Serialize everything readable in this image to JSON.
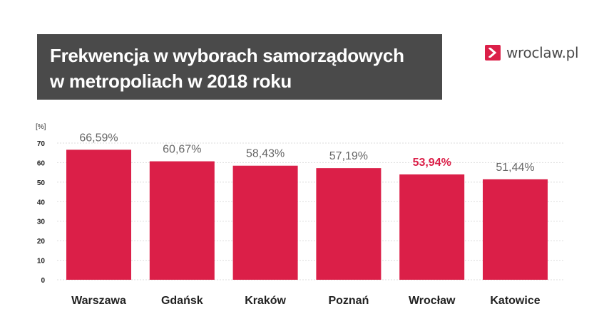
{
  "header": {
    "title_line1": "Frekwencja w wyborach samorządowych",
    "title_line2": "w metropoliach w 2018 roku",
    "logo_text": "wroclaw.pl"
  },
  "colors": {
    "bar": "#db1f48",
    "highlight_label": "#db1f48",
    "label": "#666666",
    "title_bg": "#4a4a4a"
  },
  "chart_data": {
    "type": "bar",
    "ylabel": "[%]",
    "ylim": [
      0,
      70
    ],
    "yticks": [
      0,
      10,
      20,
      30,
      40,
      50,
      60,
      70
    ],
    "grid": true,
    "categories": [
      "Warszawa",
      "Gdańsk",
      "Kraków",
      "Poznań",
      "Wrocław",
      "Katowice"
    ],
    "values": [
      66.59,
      60.67,
      58.43,
      57.19,
      53.94,
      51.44
    ],
    "value_labels": [
      "66,59%",
      "60,67%",
      "58,43%",
      "57,19%",
      "53,94%",
      "51,44%"
    ],
    "highlight_category": "Wrocław"
  }
}
